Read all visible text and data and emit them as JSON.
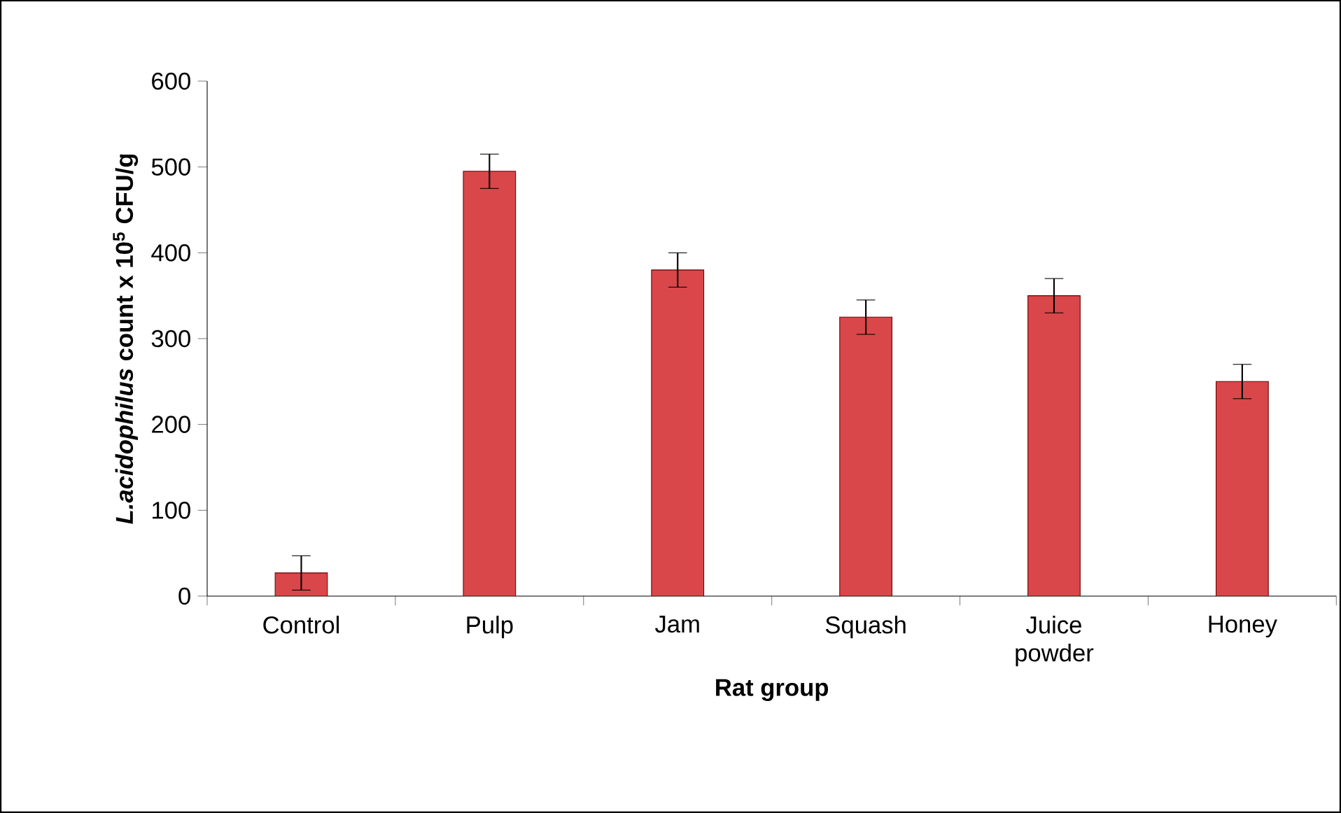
{
  "chart_data": {
    "type": "bar",
    "xlabel": "Rat group",
    "ylabel": "*L.acidophilus* count x 10$^{5}$ CFU/g",
    "categories": [
      "Control",
      "Pulp",
      "Jam",
      "Squash",
      "Juice powder",
      "Honey"
    ],
    "values": [
      27,
      495,
      380,
      325,
      350,
      250
    ],
    "errors": [
      20,
      20,
      20,
      20,
      20,
      20
    ],
    "color": "#d9474a",
    "ylim": [
      0,
      600
    ],
    "yticks": [
      0,
      100,
      200,
      300,
      400,
      500,
      600
    ],
    "grid": false
  }
}
